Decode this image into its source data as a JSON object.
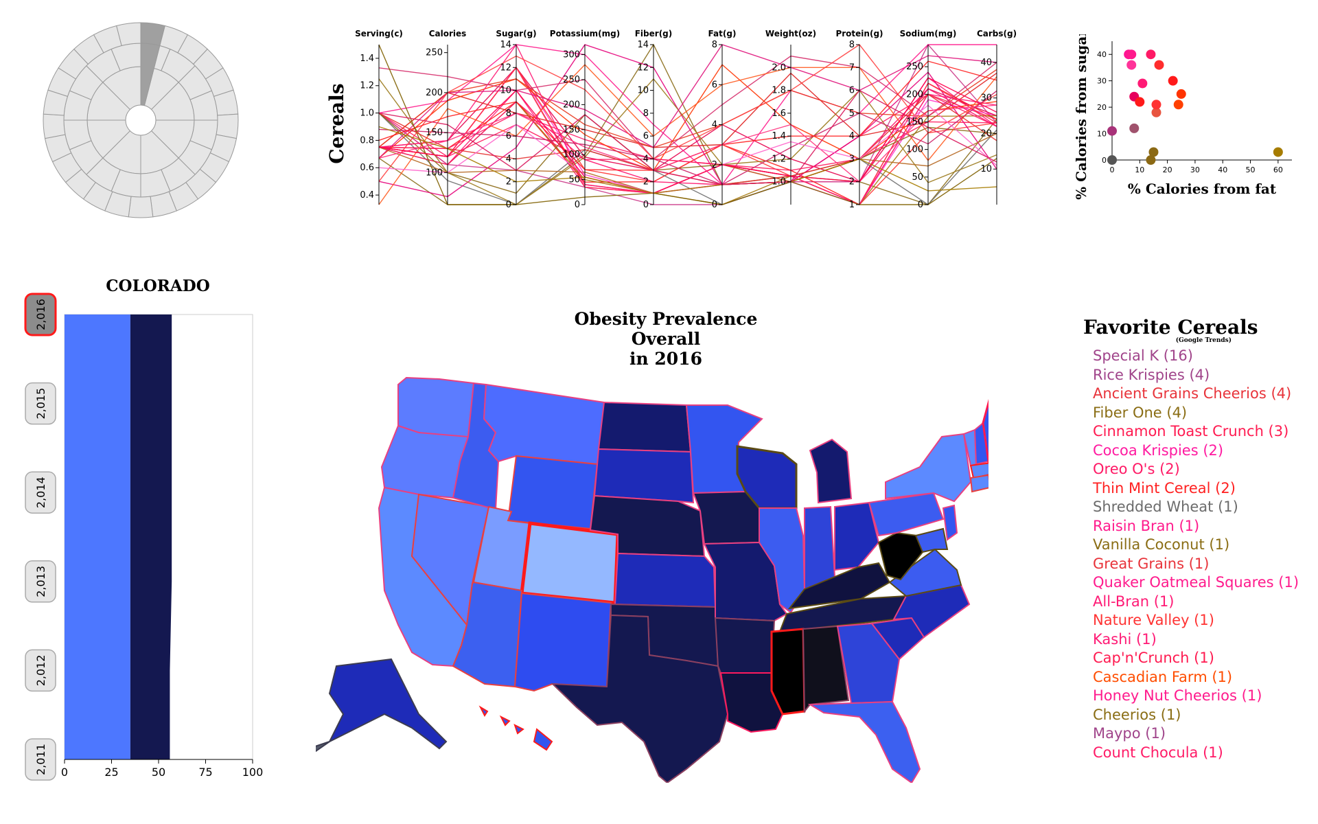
{
  "chart_data": [
    {
      "type": "sunburst",
      "rings": [
        {
          "segments": 8
        },
        {
          "segments": 16
        },
        {
          "segments": 25
        }
      ],
      "highlighted_ring": 3,
      "highlighted_segment": 0,
      "colors": {
        "fill": "#e6e6e6",
        "stroke": "#999999",
        "highlight": "#a0a0a0"
      }
    },
    {
      "type": "parallel-coordinates",
      "ylabel": "Cereals",
      "axes": [
        {
          "name": "Serving(c)",
          "ticks": [
            "0.4",
            "0.6",
            "0.8",
            "1.0",
            "1.2",
            "1.4"
          ],
          "range": [
            0.33,
            1.5
          ]
        },
        {
          "name": "Calories",
          "ticks": [
            "100",
            "150",
            "200",
            "250"
          ],
          "range": [
            60,
            260
          ]
        },
        {
          "name": "Sugar(g)",
          "ticks": [
            "0",
            "2",
            "4",
            "6",
            "8",
            "10",
            "12",
            "14"
          ],
          "range": [
            0,
            14
          ]
        },
        {
          "name": "Potassium(mg)",
          "ticks": [
            "0",
            "50",
            "100",
            "150",
            "200",
            "250",
            "300"
          ],
          "range": [
            0,
            320
          ]
        },
        {
          "name": "Fiber(g)",
          "ticks": [
            "0",
            "2",
            "4",
            "6",
            "8",
            "10",
            "12",
            "14"
          ],
          "range": [
            0,
            14
          ]
        },
        {
          "name": "Fat(g)",
          "ticks": [
            "0",
            "2",
            "4",
            "6",
            "8"
          ],
          "range": [
            0,
            8
          ]
        },
        {
          "name": "Weight(oz)",
          "ticks": [
            "1.0",
            "1.2",
            "1.4",
            "1.6",
            "1.8",
            "2.0"
          ],
          "range": [
            0.8,
            2.2
          ]
        },
        {
          "name": "Protein(g)",
          "ticks": [
            "1",
            "2",
            "3",
            "4",
            "5",
            "6",
            "7",
            "8"
          ],
          "range": [
            1,
            8
          ]
        },
        {
          "name": "Sodium(mg)",
          "ticks": [
            "0",
            "50",
            "100",
            "150",
            "200",
            "250"
          ],
          "range": [
            0,
            290
          ]
        },
        {
          "name": "Carbs(g)",
          "ticks": [
            "10",
            "20",
            "30",
            "40"
          ],
          "range": [
            0,
            45
          ]
        }
      ],
      "series": [
        {
          "color": "#ff1a75",
          "values": [
            1.0,
            110,
            10,
            35,
            1,
            1,
            1.0,
            2,
            230,
            22
          ]
        },
        {
          "color": "#e8333f",
          "values": [
            0.75,
            120,
            12,
            40,
            1,
            2,
            1.05,
            1,
            200,
            24
          ]
        },
        {
          "color": "#cc3a8a",
          "values": [
            1.0,
            110,
            3,
            35,
            0,
            0,
            1.0,
            2,
            290,
            23
          ]
        },
        {
          "color": "#8a6d1a",
          "values": [
            0.67,
            60,
            0,
            100,
            14,
            1,
            1.05,
            2,
            0,
            24
          ]
        },
        {
          "color": "#ff1a1a",
          "values": [
            0.75,
            130,
            9,
            45,
            2,
            3,
            1.1,
            1,
            220,
            24
          ]
        },
        {
          "color": "#ff33cc",
          "values": [
            0.75,
            120,
            12,
            60,
            1,
            1,
            1.0,
            1,
            190,
            25
          ]
        },
        {
          "color": "#e6004c",
          "values": [
            0.75,
            140,
            12,
            95,
            3,
            4,
            1.2,
            2,
            210,
            25
          ]
        },
        {
          "color": "#ff3333",
          "values": [
            0.75,
            120,
            12,
            70,
            2,
            3,
            1.05,
            1,
            130,
            23
          ]
        },
        {
          "color": "#6e6e6e",
          "values": [
            1.0,
            90,
            0,
            110,
            3,
            0,
            1.0,
            3,
            0,
            21
          ]
        },
        {
          "color": "#ff1a8c",
          "values": [
            1.0,
            190,
            18,
            300,
            7,
            1,
            1.8,
            5,
            330,
            45
          ]
        },
        {
          "color": "#a5790d",
          "values": [
            0.75,
            110,
            9,
            50,
            1,
            0,
            1.05,
            1,
            160,
            25
          ]
        },
        {
          "color": "#e02020",
          "values": [
            0.75,
            200,
            8,
            150,
            5,
            3,
            1.95,
            4,
            150,
            37
          ]
        },
        {
          "color": "#ff1a66",
          "values": [
            0.75,
            130,
            8,
            130,
            4,
            2,
            1.0,
            4,
            200,
            22
          ]
        },
        {
          "color": "#e6007a",
          "values": [
            0.5,
            70,
            5,
            320,
            12,
            1,
            1.0,
            4,
            240,
            10
          ]
        },
        {
          "color": "#ff3300",
          "values": [
            0.67,
            190,
            11,
            140,
            3,
            7,
            1.5,
            3,
            170,
            29
          ]
        },
        {
          "color": "#ff1a5e",
          "values": [
            1.0,
            120,
            7,
            90,
            4,
            2,
            1.1,
            3,
            150,
            23
          ]
        },
        {
          "color": "#ff2d55",
          "values": [
            0.75,
            120,
            12,
            35,
            1,
            2,
            1.05,
            1,
            220,
            23
          ]
        },
        {
          "color": "#e83a20",
          "values": [
            0.75,
            200,
            11,
            160,
            5,
            4,
            1.8,
            5,
            160,
            38
          ]
        },
        {
          "color": "#ff0f6a",
          "values": [
            0.75,
            110,
            9,
            90,
            2,
            1,
            1.0,
            3,
            210,
            22
          ]
        },
        {
          "color": "#8b6914",
          "values": [
            1.0,
            100,
            1,
            180,
            3,
            2,
            1.05,
            3,
            140,
            20
          ]
        },
        {
          "color": "#b5651d",
          "values": [
            0.75,
            100,
            3,
            65,
            1,
            2,
            1.0,
            3,
            70,
            20
          ]
        },
        {
          "color": "#ff1a75",
          "values": [
            0.75,
            140,
            14,
            40,
            1,
            2,
            1.05,
            1,
            200,
            28
          ]
        },
        {
          "color": "#d62d6b",
          "values": [
            1.33,
            220,
            10,
            250,
            4,
            5,
            2.1,
            7,
            160,
            40
          ]
        },
        {
          "color": "#ff5a1f",
          "values": [
            0.33,
            180,
            6,
            280,
            6,
            6,
            2.0,
            7,
            80,
            36
          ]
        },
        {
          "color": "#9b7a1c",
          "values": [
            1.25,
            100,
            0,
            95,
            11,
            2,
            1.2,
            6,
            40,
            14
          ]
        },
        {
          "color": "#e0157c",
          "values": [
            0.67,
            200,
            10,
            190,
            5,
            8,
            2.0,
            6,
            270,
            40
          ]
        },
        {
          "color": "#ff4040",
          "values": [
            0.5,
            200,
            13,
            230,
            4,
            4,
            1.8,
            8,
            130,
            31
          ]
        },
        {
          "color": "#cc1f66",
          "values": [
            0.88,
            150,
            6,
            120,
            4,
            1,
            1.3,
            5,
            110,
            32
          ]
        },
        {
          "color": "#ff2020",
          "values": [
            0.8,
            170,
            9,
            70,
            3,
            3,
            1.4,
            4,
            260,
            35
          ]
        },
        {
          "color": "#806000",
          "values": [
            1.5,
            50,
            0,
            15,
            1,
            0,
            1.0,
            1,
            0,
            13
          ]
        },
        {
          "color": "#ff3380",
          "values": [
            0.67,
            140,
            8,
            115,
            3,
            3,
            1.5,
            2,
            170,
            28
          ]
        },
        {
          "color": "#e62e2e",
          "values": [
            1.0,
            130,
            4,
            110,
            3,
            1,
            1.05,
            3,
            200,
            18
          ]
        },
        {
          "color": "#ff66cc",
          "values": [
            0.6,
            100,
            7,
            60,
            1,
            2,
            1.35,
            3,
            180,
            11
          ]
        },
        {
          "color": "#ff004c",
          "values": [
            0.75,
            120,
            10,
            55,
            1,
            2,
            1.05,
            2,
            230,
            26
          ]
        },
        {
          "color": "#a67c00",
          "values": [
            0.9,
            130,
            2,
            55,
            1,
            1,
            1.0,
            3,
            25,
            5
          ]
        },
        {
          "color": "#d91a5e",
          "values": [
            1.0,
            160,
            3,
            180,
            3,
            1,
            1.0,
            6,
            140,
            12
          ]
        }
      ]
    },
    {
      "type": "scatter",
      "xlabel": "% Calories from fat",
      "ylabel": "% Calories from sugar",
      "xlim": [
        0,
        65
      ],
      "ylim": [
        0,
        45
      ],
      "xticks": [
        0,
        10,
        20,
        30,
        40,
        50,
        60
      ],
      "yticks": [
        0,
        10,
        20,
        30,
        40
      ],
      "points": [
        {
          "x": 0,
          "y": 0,
          "color": "#555555"
        },
        {
          "x": 0,
          "y": 11,
          "color": "#a83279"
        },
        {
          "x": 6,
          "y": 40,
          "color": "#ff1493"
        },
        {
          "x": 7,
          "y": 40,
          "color": "#ff1a8c"
        },
        {
          "x": 7,
          "y": 36,
          "color": "#ff3399"
        },
        {
          "x": 8,
          "y": 24,
          "color": "#e6005c"
        },
        {
          "x": 8,
          "y": 12,
          "color": "#a0526d"
        },
        {
          "x": 10,
          "y": 22,
          "color": "#ff1a1a"
        },
        {
          "x": 11,
          "y": 29,
          "color": "#ff1a75"
        },
        {
          "x": 14,
          "y": 40,
          "color": "#ff1a66"
        },
        {
          "x": 14,
          "y": 0,
          "color": "#8b6914"
        },
        {
          "x": 15,
          "y": 3,
          "color": "#8b6914"
        },
        {
          "x": 16,
          "y": 18,
          "color": "#e8543f"
        },
        {
          "x": 16,
          "y": 21,
          "color": "#ff3333"
        },
        {
          "x": 17,
          "y": 36,
          "color": "#ff2d2d"
        },
        {
          "x": 22,
          "y": 30,
          "color": "#ff1a1a"
        },
        {
          "x": 24,
          "y": 21,
          "color": "#ff4000"
        },
        {
          "x": 25,
          "y": 25,
          "color": "#ff3300"
        },
        {
          "x": 60,
          "y": 3,
          "color": "#a67c00"
        }
      ]
    },
    {
      "type": "area",
      "title": "COLORADO",
      "orientation": "vertical-years",
      "years": [
        "2,016",
        "2,015",
        "2,014",
        "2,013",
        "2,012",
        "2,011"
      ],
      "selected_year": "2,016",
      "xlim": [
        0,
        100
      ],
      "xticks": [
        "0",
        "25",
        "50",
        "75",
        "100"
      ],
      "series": [
        {
          "color": "#4d77ff",
          "values": [
            35,
            35,
            35,
            35,
            35,
            35
          ]
        },
        {
          "color": "#141850",
          "values": [
            57,
            57,
            57,
            57,
            56,
            56
          ]
        }
      ]
    },
    {
      "type": "choropleth-map",
      "title_lines": [
        "Obesity Prevalence",
        "Overall",
        "in 2016"
      ],
      "region": "United States",
      "selected_state": "Colorado",
      "legend_colors": [
        "#94b8ff",
        "#5c8aff",
        "#3355f0",
        "#1e2bb8",
        "#141a6e",
        "#10123f",
        "#000000"
      ]
    }
  ],
  "favorites": {
    "title": "Favorite Cereals",
    "subtitle": "(Google Trends)",
    "items": [
      {
        "label": "Special K (16)",
        "color": "#a0448a"
      },
      {
        "label": "Rice Krispies (4)",
        "color": "#a0448a"
      },
      {
        "label": "Ancient Grains Cheerios (4)",
        "color": "#e8333a"
      },
      {
        "label": "Fiber One (4)",
        "color": "#8a6d14"
      },
      {
        "label": "Cinnamon Toast Crunch (3)",
        "color": "#ff1a50"
      },
      {
        "label": "Cocoa Krispies (2)",
        "color": "#ff1aa0"
      },
      {
        "label": "Oreo O's (2)",
        "color": "#ff1a66"
      },
      {
        "label": "Thin Mint Cereal (2)",
        "color": "#ff2020"
      },
      {
        "label": "Shredded Wheat (1)",
        "color": "#6b6b6b"
      },
      {
        "label": "Raisin Bran (1)",
        "color": "#ff1a8c"
      },
      {
        "label": "Vanilla Coconut (1)",
        "color": "#8a6d14"
      },
      {
        "label": "Great Grains (1)",
        "color": "#e8333a"
      },
      {
        "label": "Quaker Oatmeal Squares (1)",
        "color": "#ff1a8c"
      },
      {
        "label": "All-Bran (1)",
        "color": "#ff1a75"
      },
      {
        "label": "Nature Valley (1)",
        "color": "#ff3333"
      },
      {
        "label": "Kashi (1)",
        "color": "#ff1a75"
      },
      {
        "label": "Cap'n'Crunch (1)",
        "color": "#ff1a50"
      },
      {
        "label": "Cascadian Farm (1)",
        "color": "#ff4d00"
      },
      {
        "label": "Honey Nut Cheerios (1)",
        "color": "#ff1a8c"
      },
      {
        "label": "Cheerios (1)",
        "color": "#8a6d14"
      },
      {
        "label": "Maypo (1)",
        "color": "#a0448a"
      },
      {
        "label": "Count Chocula (1)",
        "color": "#ff1a66"
      }
    ]
  }
}
